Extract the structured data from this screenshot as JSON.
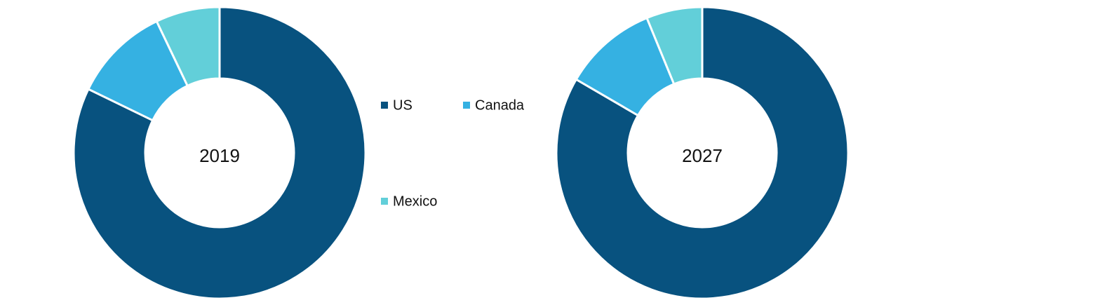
{
  "chart_data": [
    {
      "type": "pie",
      "title": "2019",
      "categories": [
        "US",
        "Canada",
        "Mexico"
      ],
      "values": [
        82.2,
        10.7,
        7.1
      ],
      "colors": [
        "#08527f",
        "#35b1e2",
        "#62cfd9"
      ]
    },
    {
      "type": "pie",
      "title": "2027",
      "categories": [
        "US",
        "Canada",
        "Mexico"
      ],
      "values": [
        83.4,
        10.4,
        6.2
      ],
      "colors": [
        "#08527f",
        "#35b1e2",
        "#62cfd9"
      ]
    }
  ]
}
